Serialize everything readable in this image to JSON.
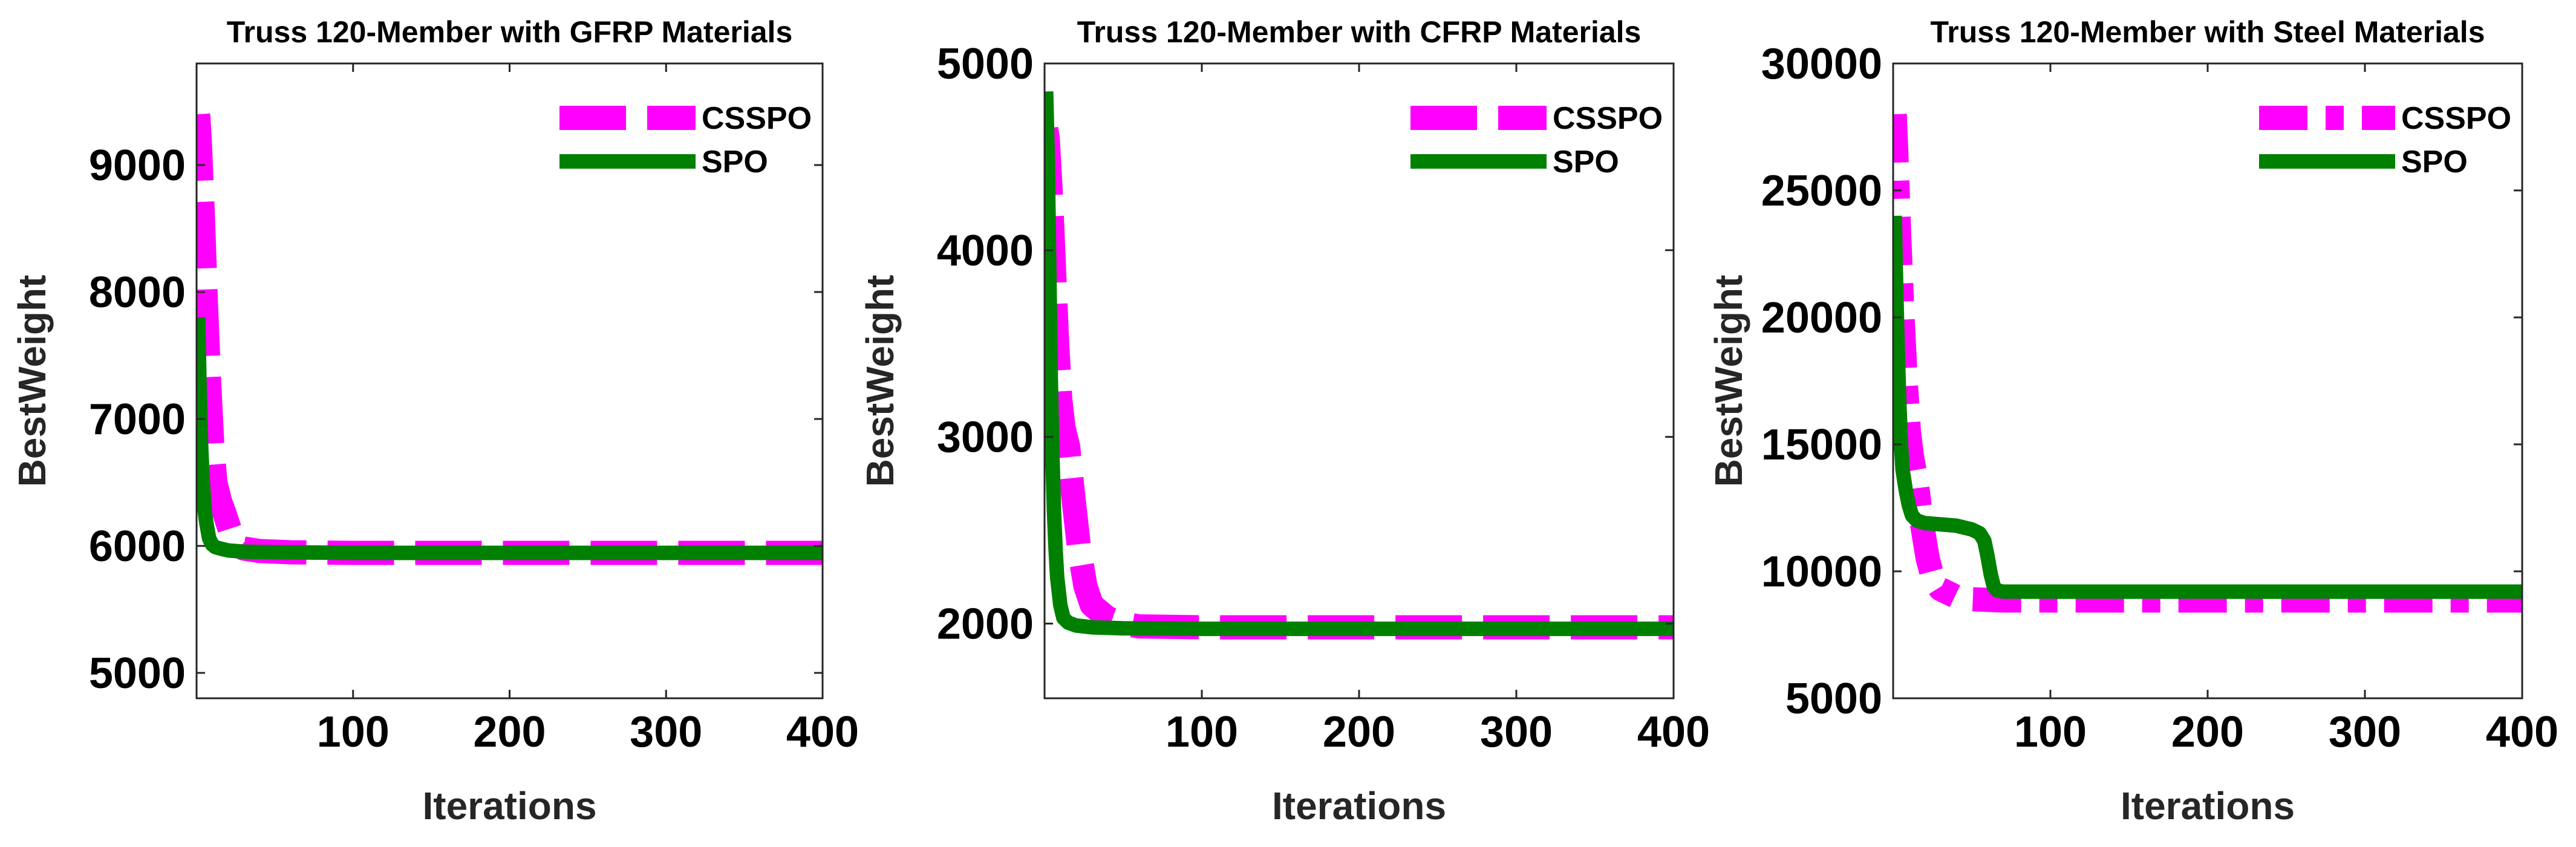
{
  "colors": {
    "csspo": "#ff00ff",
    "spo": "#008000",
    "axis": "#262626",
    "background": "#ffffff"
  },
  "chart_data": [
    {
      "type": "line",
      "title": "Truss 120-Member with GFRP Materials",
      "xlabel": "Iterations",
      "ylabel": "BestWeight",
      "xlim": [
        0,
        400
      ],
      "ylim": [
        4800,
        9800
      ],
      "xticks": [
        100,
        200,
        300,
        400
      ],
      "yticks": [
        5000,
        6000,
        7000,
        8000,
        9000
      ],
      "legend_position": "top-right",
      "series": [
        {
          "name": "CSSPO",
          "style": "dashed",
          "x": [
            1,
            2,
            4,
            6,
            8,
            10,
            12,
            15,
            18,
            22,
            26,
            30,
            40,
            60,
            100,
            200,
            300,
            400
          ],
          "y": [
            9400,
            9200,
            8600,
            7900,
            7300,
            6800,
            6500,
            6350,
            6250,
            6100,
            6020,
            5980,
            5960,
            5950,
            5945,
            5945,
            5945,
            5945
          ]
        },
        {
          "name": "SPO",
          "style": "solid",
          "x": [
            1,
            2,
            3,
            4,
            5,
            6,
            8,
            10,
            12,
            15,
            20,
            30,
            50,
            100,
            200,
            300,
            400
          ],
          "y": [
            7800,
            7200,
            6750,
            6500,
            6300,
            6200,
            6060,
            6010,
            5990,
            5980,
            5965,
            5955,
            5950,
            5945,
            5945,
            5945,
            5945
          ]
        }
      ]
    },
    {
      "type": "line",
      "title": "Truss 120-Member with CFRP Materials",
      "xlabel": "Iterations",
      "ylabel": "BestWeight",
      "xlim": [
        0,
        400
      ],
      "ylim": [
        1600,
        5000
      ],
      "xticks": [
        100,
        200,
        300,
        400
      ],
      "yticks": [
        2000,
        3000,
        4000,
        5000
      ],
      "legend_position": "top-right",
      "series": [
        {
          "name": "CSSPO",
          "style": "dashed",
          "x": [
            1,
            2,
            4,
            6,
            8,
            10,
            12,
            15,
            18,
            22,
            26,
            30,
            40,
            50,
            60,
            100,
            200,
            300,
            400
          ],
          "y": [
            4650,
            4600,
            4300,
            3900,
            3500,
            3200,
            3050,
            2950,
            2700,
            2400,
            2200,
            2100,
            2030,
            2000,
            1985,
            1980,
            1980,
            1980,
            1980
          ]
        },
        {
          "name": "SPO",
          "style": "solid",
          "x": [
            1,
            2,
            3,
            4,
            5,
            6,
            7,
            8,
            10,
            12,
            15,
            20,
            30,
            50,
            100,
            200,
            300,
            400
          ],
          "y": [
            4850,
            4500,
            3900,
            3300,
            2900,
            2600,
            2400,
            2250,
            2100,
            2030,
            2005,
            1990,
            1980,
            1975,
            1972,
            1972,
            1972,
            1972
          ]
        }
      ]
    },
    {
      "type": "line",
      "title": "Truss 120-Member with Steel Materials",
      "xlabel": "Iterations",
      "ylabel": "BestWeight",
      "xlim": [
        0,
        400
      ],
      "ylim": [
        5000,
        30000
      ],
      "xticks": [
        100,
        200,
        300,
        400
      ],
      "yticks": [
        5000,
        10000,
        15000,
        20000,
        25000,
        30000
      ],
      "legend_position": "top-right",
      "series": [
        {
          "name": "CSSPO",
          "style": "dashdot",
          "x": [
            1,
            2,
            4,
            6,
            8,
            10,
            12,
            15,
            18,
            22,
            25,
            30,
            40,
            50,
            70,
            100,
            200,
            300,
            400
          ],
          "y": [
            28000,
            26500,
            23000,
            20000,
            17500,
            15500,
            14500,
            13500,
            12000,
            10500,
            9800,
            9300,
            9000,
            8900,
            8850,
            8850,
            8850,
            8850,
            8850
          ]
        },
        {
          "name": "SPO",
          "style": "solid",
          "x": [
            1,
            2,
            3,
            4,
            5,
            6,
            8,
            10,
            12,
            15,
            20,
            30,
            40,
            50,
            55,
            58,
            60,
            62,
            64,
            66,
            70,
            100,
            200,
            300,
            400
          ],
          "y": [
            24000,
            21000,
            18500,
            16500,
            15000,
            14000,
            13200,
            12600,
            12200,
            12000,
            11900,
            11850,
            11800,
            11650,
            11500,
            11200,
            10600,
            9900,
            9400,
            9250,
            9200,
            9200,
            9200,
            9200,
            9200
          ]
        }
      ]
    }
  ]
}
